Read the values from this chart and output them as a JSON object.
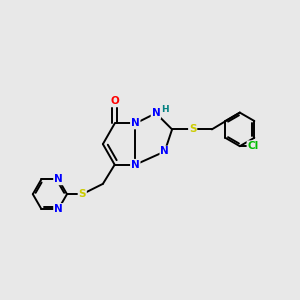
{
  "background_color": "#e8e8e8",
  "atom_colors": {
    "N": "#0000ff",
    "O": "#ff0000",
    "S": "#cccc00",
    "Cl": "#00bb00",
    "C": "#000000",
    "H": "#008080"
  },
  "bond_color": "#000000",
  "figsize": [
    3.0,
    3.0
  ],
  "dpi": 100
}
